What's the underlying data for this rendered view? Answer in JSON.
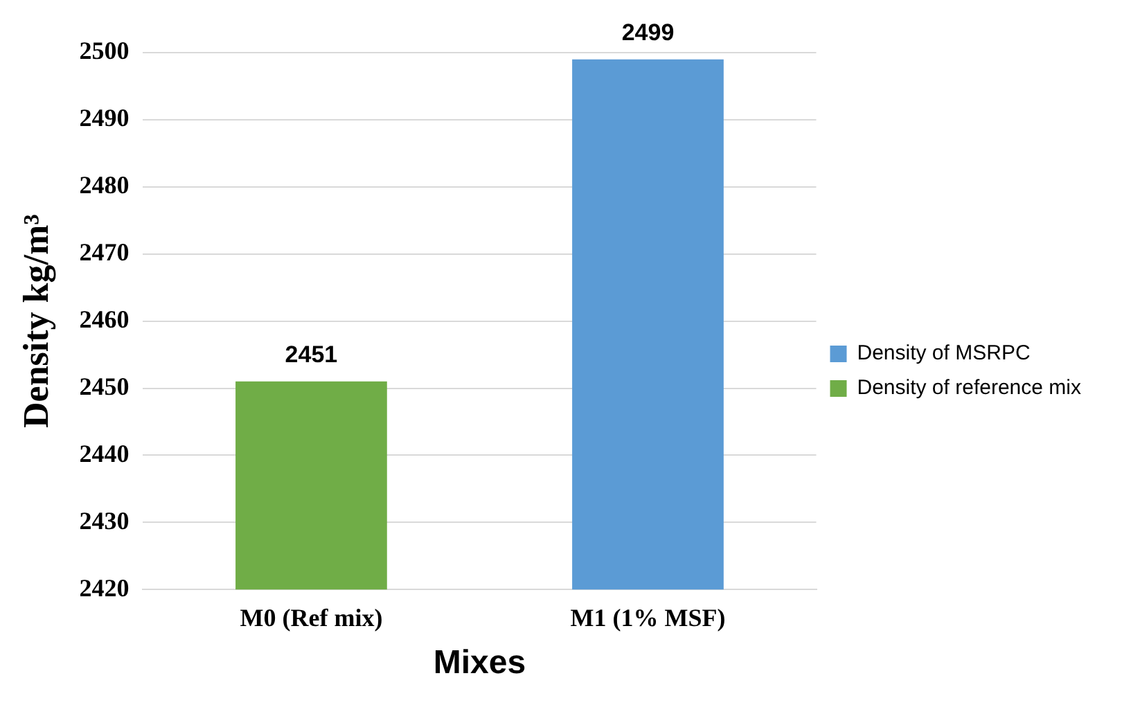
{
  "chart_data": {
    "type": "bar",
    "xlabel": "Mixes",
    "ylabel": "Density kg/m³",
    "categories": [
      "M0 (Ref mix)",
      "M1 (1% MSF)"
    ],
    "series": [
      {
        "name": "Density of MSRPC",
        "color": "#5b9bd5",
        "values": [
          null,
          2499
        ]
      },
      {
        "name": "Density of reference mix",
        "color": "#70ad47",
        "values": [
          2451,
          null
        ]
      }
    ],
    "ylim": [
      2420,
      2500
    ],
    "yticks": [
      2420,
      2430,
      2440,
      2450,
      2460,
      2470,
      2480,
      2490,
      2500
    ],
    "grid": "y",
    "legend": "right",
    "data_labels": true
  }
}
